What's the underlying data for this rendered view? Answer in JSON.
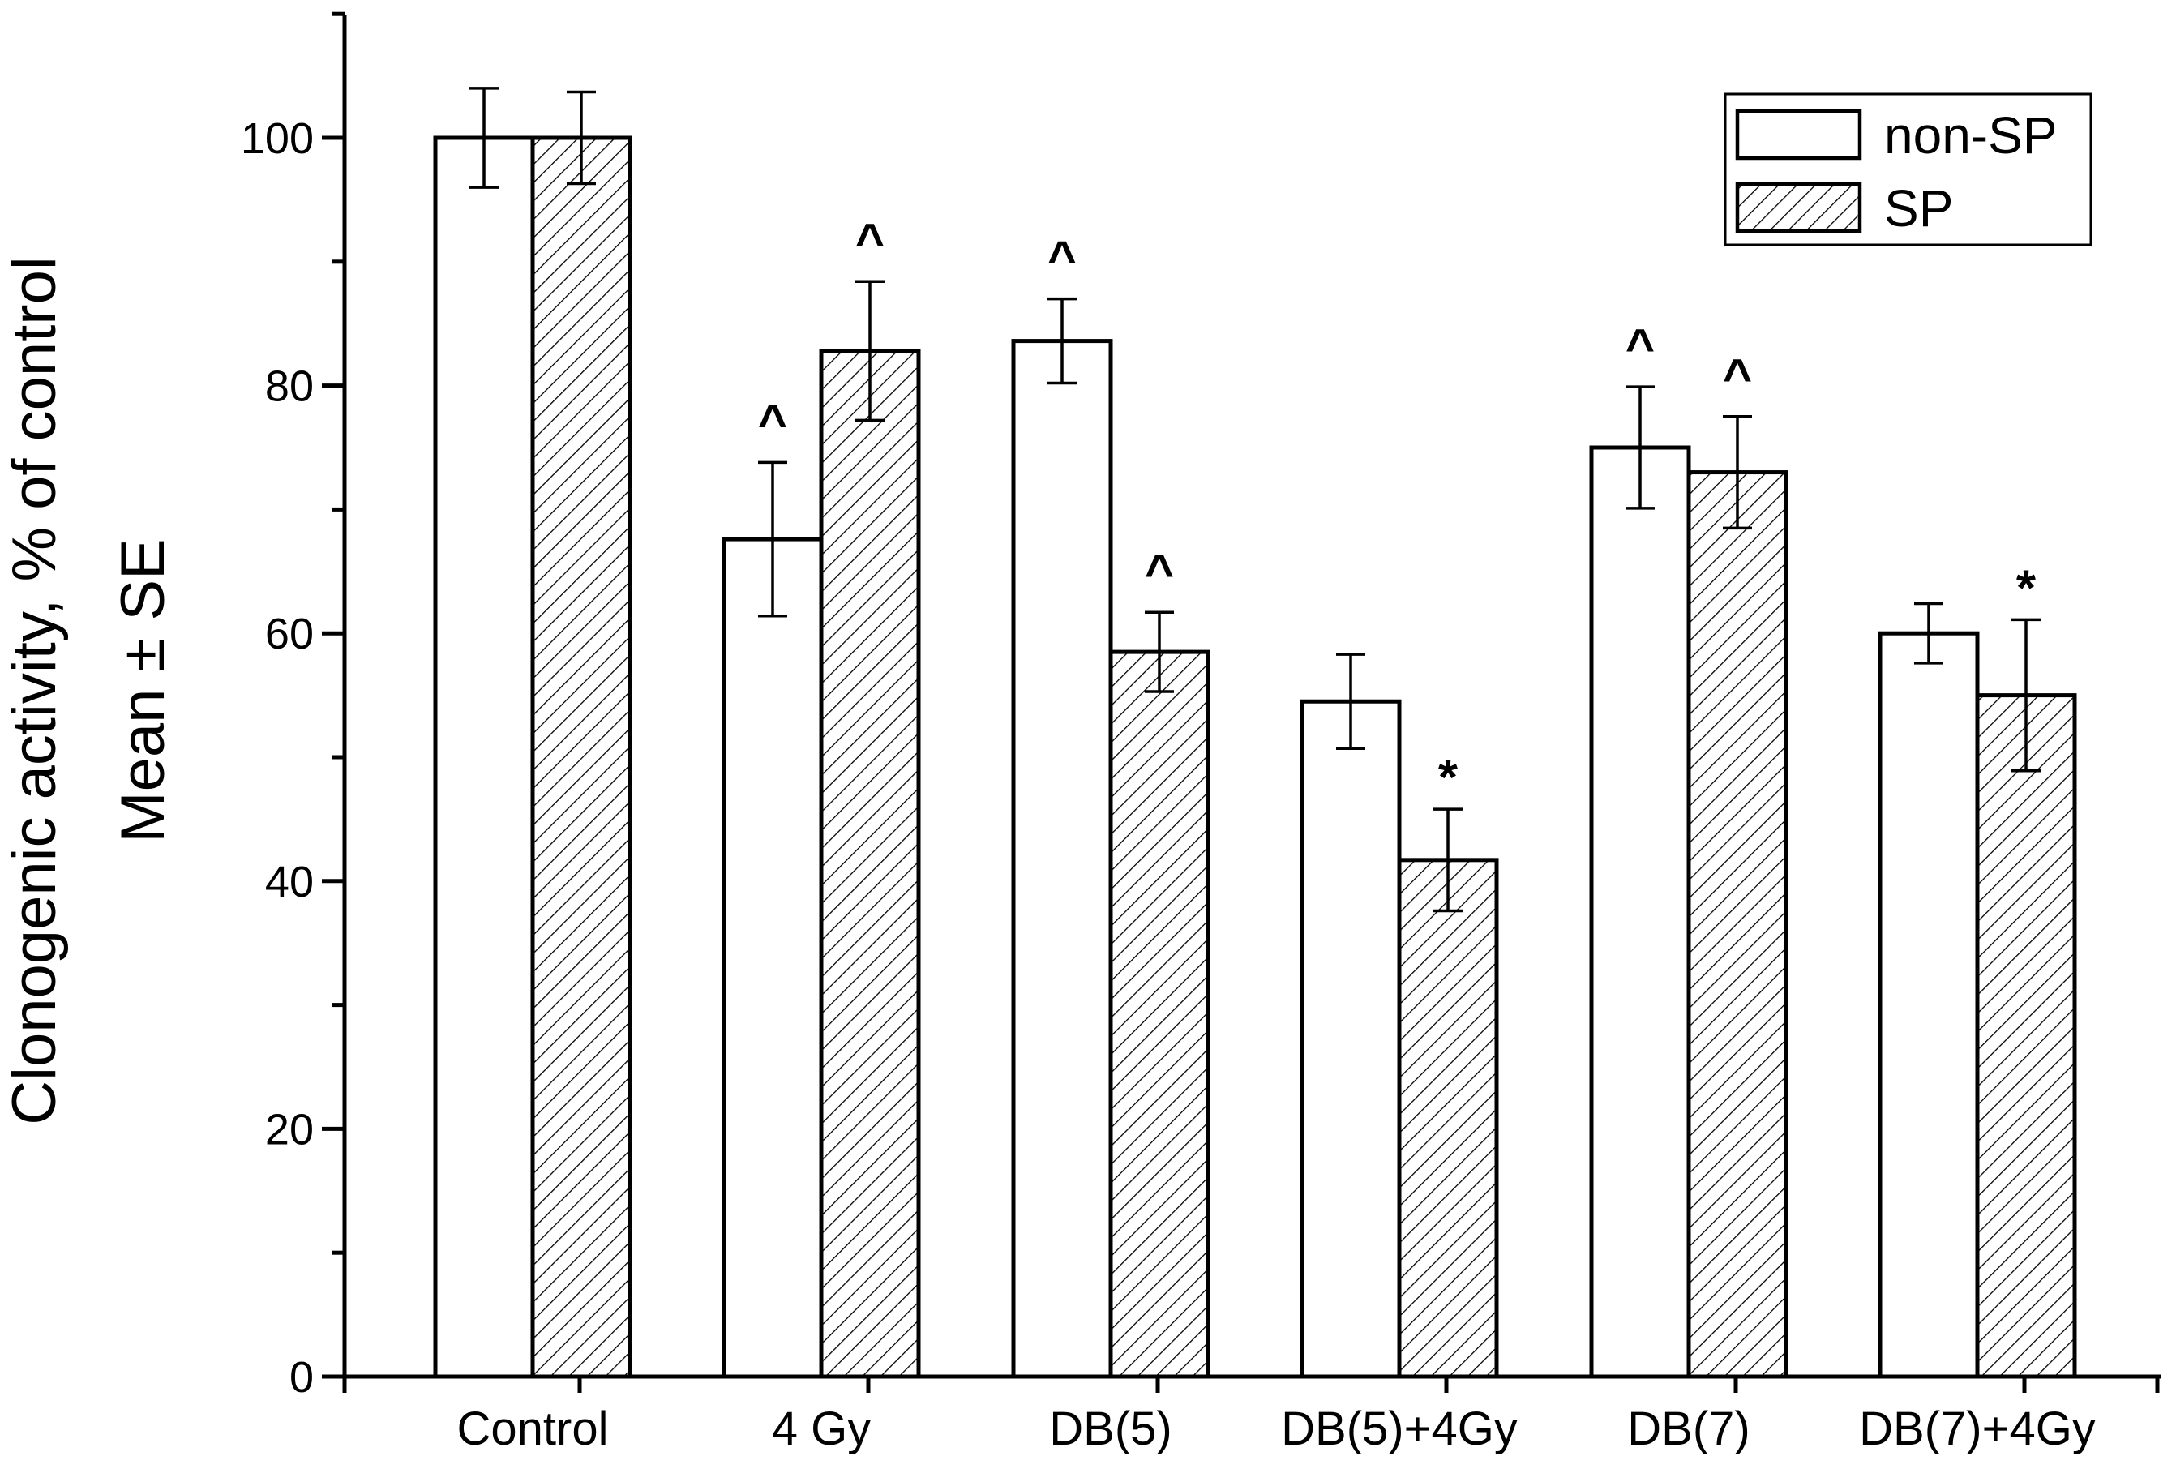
{
  "chart_data": {
    "type": "bar",
    "ylabel": [
      "Clonogenic activity, % of control",
      "Mean ± SE"
    ],
    "xlabel": "",
    "ylim": [
      0,
      110
    ],
    "yticks": [
      0,
      20,
      40,
      60,
      80,
      100
    ],
    "categories": [
      "Control",
      "4 Gy",
      "DB(5)",
      "DB(5)+4Gy",
      "DB(7)",
      "DB(7)+4Gy"
    ],
    "series": [
      {
        "name": "non-SP",
        "fill": "#ffffff",
        "pattern": "none",
        "values": [
          100,
          67.6,
          83.6,
          54.5,
          75.0,
          60.0
        ],
        "errors": [
          4.0,
          6.2,
          3.4,
          3.8,
          4.9,
          2.4
        ],
        "annotations": [
          "",
          "^",
          "^",
          "",
          "^",
          ""
        ]
      },
      {
        "name": "SP",
        "fill": "#ffffff",
        "pattern": "diagonal-hatch",
        "values": [
          100,
          82.8,
          58.5,
          41.7,
          73.0,
          55.0
        ],
        "errors": [
          3.7,
          5.6,
          3.2,
          4.1,
          4.5,
          6.1
        ],
        "annotations": [
          "",
          "^",
          "^",
          "*",
          "^",
          "*"
        ]
      }
    ],
    "legend": {
      "position": "top-right"
    },
    "grid": false
  }
}
